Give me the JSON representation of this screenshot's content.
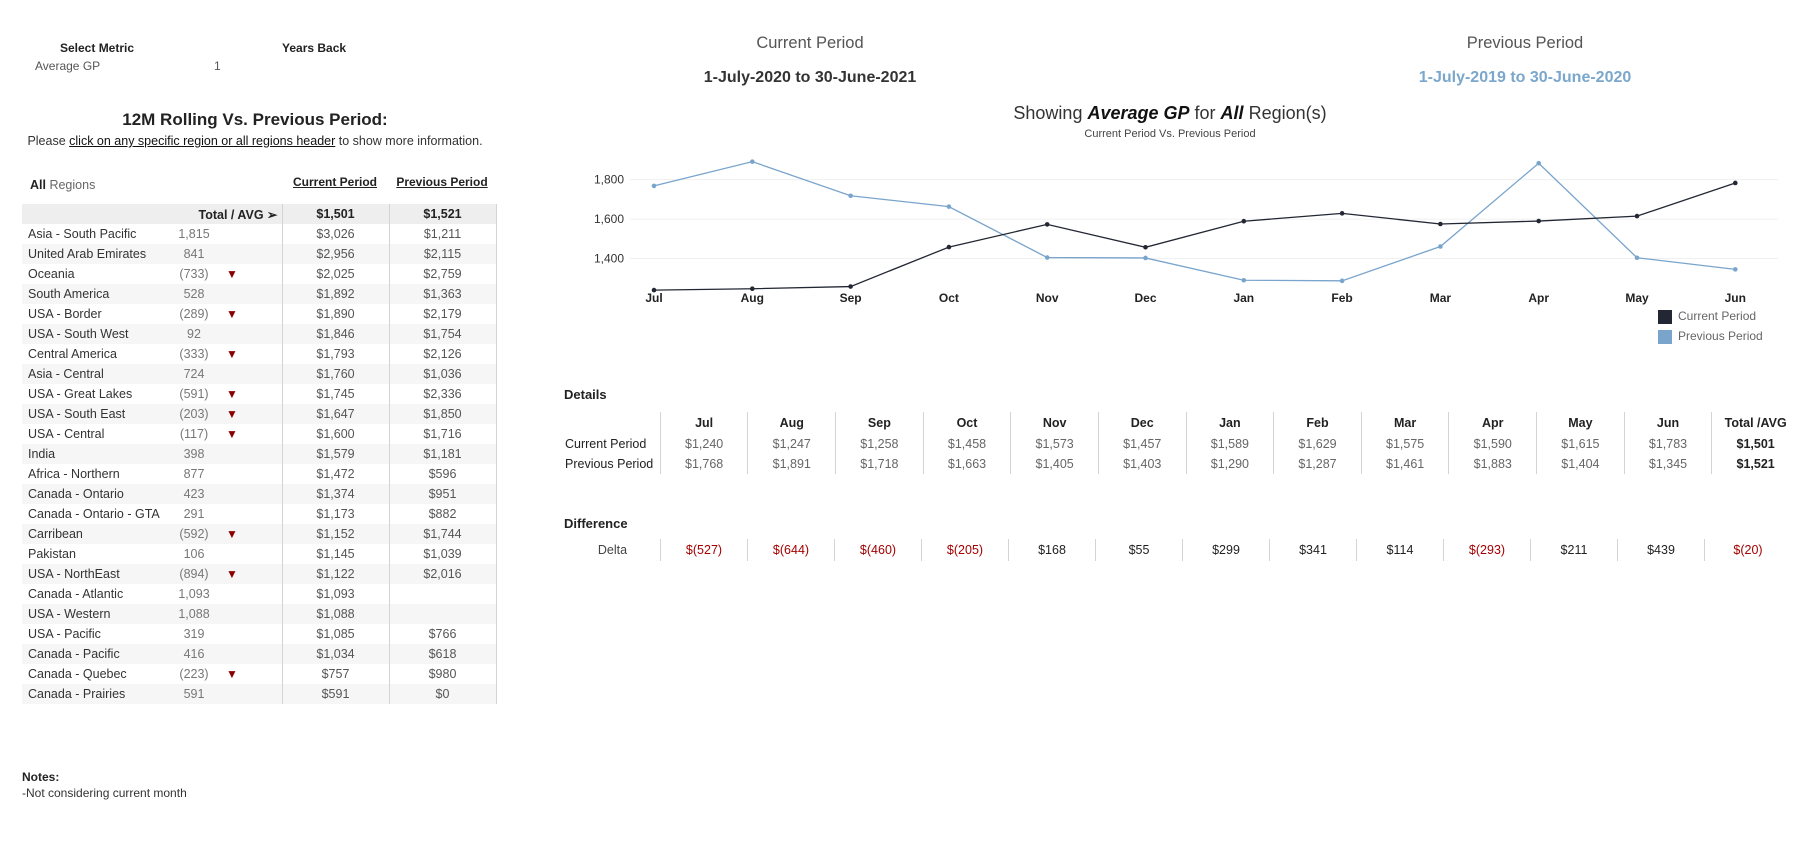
{
  "filters": {
    "metric_label": "Select Metric",
    "metric_value": "Average GP",
    "years_label": "Years Back",
    "years_value": "1"
  },
  "left_panel": {
    "title": "12M Rolling Vs. Previous Period:",
    "instruction_prefix": "Please ",
    "instruction_link": "click on any specific region or all regions header",
    "instruction_suffix": " to show more information.",
    "regions_header_bold": "All",
    "regions_header_rest": " Regions",
    "col_current": "Current Period",
    "col_previous": "Previous Period",
    "total_label": "Total / AVG ➢",
    "total_current": "$1,501",
    "total_previous": "$1,521",
    "rows": [
      {
        "name": "Asia - South Pacific",
        "diff": "1,815",
        "down": false,
        "current": "$3,026",
        "previous": "$1,211"
      },
      {
        "name": "United Arab Emirates",
        "diff": "841",
        "down": false,
        "current": "$2,956",
        "previous": "$2,115"
      },
      {
        "name": "Oceania",
        "diff": "(733)",
        "down": true,
        "current": "$2,025",
        "previous": "$2,759"
      },
      {
        "name": "South America",
        "diff": "528",
        "down": false,
        "current": "$1,892",
        "previous": "$1,363"
      },
      {
        "name": "USA - Border",
        "diff": "(289)",
        "down": true,
        "current": "$1,890",
        "previous": "$2,179"
      },
      {
        "name": "USA - South West",
        "diff": "92",
        "down": false,
        "current": "$1,846",
        "previous": "$1,754"
      },
      {
        "name": "Central America",
        "diff": "(333)",
        "down": true,
        "current": "$1,793",
        "previous": "$2,126"
      },
      {
        "name": "Asia - Central",
        "diff": "724",
        "down": false,
        "current": "$1,760",
        "previous": "$1,036"
      },
      {
        "name": "USA - Great Lakes",
        "diff": "(591)",
        "down": true,
        "current": "$1,745",
        "previous": "$2,336"
      },
      {
        "name": "USA - South East",
        "diff": "(203)",
        "down": true,
        "current": "$1,647",
        "previous": "$1,850"
      },
      {
        "name": "USA - Central",
        "diff": "(117)",
        "down": true,
        "current": "$1,600",
        "previous": "$1,716"
      },
      {
        "name": "India",
        "diff": "398",
        "down": false,
        "current": "$1,579",
        "previous": "$1,181"
      },
      {
        "name": "Africa - Northern",
        "diff": "877",
        "down": false,
        "current": "$1,472",
        "previous": "$596"
      },
      {
        "name": "Canada - Ontario",
        "diff": "423",
        "down": false,
        "current": "$1,374",
        "previous": "$951"
      },
      {
        "name": "Canada - Ontario - GTA",
        "diff": "291",
        "down": false,
        "current": "$1,173",
        "previous": "$882"
      },
      {
        "name": "Carribean",
        "diff": "(592)",
        "down": true,
        "current": "$1,152",
        "previous": "$1,744"
      },
      {
        "name": "Pakistan",
        "diff": "106",
        "down": false,
        "current": "$1,145",
        "previous": "$1,039"
      },
      {
        "name": "USA - NorthEast",
        "diff": "(894)",
        "down": true,
        "current": "$1,122",
        "previous": "$2,016"
      },
      {
        "name": "Canada - Atlantic",
        "diff": "1,093",
        "down": false,
        "current": "$1,093",
        "previous": ""
      },
      {
        "name": "USA - Western",
        "diff": "1,088",
        "down": false,
        "current": "$1,088",
        "previous": ""
      },
      {
        "name": "USA - Pacific",
        "diff": "319",
        "down": false,
        "current": "$1,085",
        "previous": "$766"
      },
      {
        "name": "Canada - Pacific",
        "diff": "416",
        "down": false,
        "current": "$1,034",
        "previous": "$618"
      },
      {
        "name": "Canada - Quebec",
        "diff": "(223)",
        "down": true,
        "current": "$757",
        "previous": "$980"
      },
      {
        "name": "Canada - Prairies",
        "diff": "591",
        "down": false,
        "current": "$591",
        "previous": "$0"
      }
    ],
    "down_icon": "triangle-down-icon",
    "down_color": "#8b0000"
  },
  "notes": {
    "title": "Notes:",
    "text": "-Not considering current month"
  },
  "periods": {
    "current_label": "Current Period",
    "current_dates": "1-July-2020  to  30-June-2021",
    "current_color": "#333333",
    "previous_label": "Previous Period",
    "previous_dates": "1-July-2019  to  30-June-2020",
    "previous_color": "#7ba7cc"
  },
  "showing": {
    "prefix": "Showing ",
    "metric": "Average GP",
    "mid": " for ",
    "region": "All",
    "suffix": " Region(s)",
    "subtitle": "Current Period Vs. Previous Period"
  },
  "chart_data": {
    "type": "line",
    "categories": [
      "Jul",
      "Aug",
      "Sep",
      "Oct",
      "Nov",
      "Dec",
      "Jan",
      "Feb",
      "Mar",
      "Apr",
      "May",
      "Jun"
    ],
    "series": [
      {
        "name": "Current Period",
        "color": "#222733",
        "values": [
          1240,
          1247,
          1258,
          1458,
          1573,
          1457,
          1589,
          1629,
          1575,
          1590,
          1615,
          1783
        ]
      },
      {
        "name": "Previous Period",
        "color": "#79a4cc",
        "values": [
          1768,
          1891,
          1718,
          1663,
          1405,
          1403,
          1290,
          1287,
          1461,
          1883,
          1404,
          1345
        ]
      }
    ],
    "y_ticks": [
      "1,400",
      "1,600",
      "1,800"
    ],
    "ylim": [
      1200,
      1950
    ],
    "grid": true,
    "legend": "bottom-right"
  },
  "details": {
    "title": "Details",
    "months": [
      "Jul",
      "Aug",
      "Sep",
      "Oct",
      "Nov",
      "Dec",
      "Jan",
      "Feb",
      "Mar",
      "Apr",
      "May",
      "Jun"
    ],
    "total_header": "Total /AVG",
    "current_label": "Current Period",
    "current_values": [
      "$1,240",
      "$1,247",
      "$1,258",
      "$1,458",
      "$1,573",
      "$1,457",
      "$1,589",
      "$1,629",
      "$1,575",
      "$1,590",
      "$1,615",
      "$1,783"
    ],
    "current_total": "$1,501",
    "previous_label": "Previous Period",
    "previous_values": [
      "$1,768",
      "$1,891",
      "$1,718",
      "$1,663",
      "$1,405",
      "$1,403",
      "$1,290",
      "$1,287",
      "$1,461",
      "$1,883",
      "$1,404",
      "$1,345"
    ],
    "previous_total": "$1,521"
  },
  "difference": {
    "title": "Difference",
    "label": "Delta",
    "values": [
      {
        "text": "$(527)",
        "negative": true
      },
      {
        "text": "$(644)",
        "negative": true
      },
      {
        "text": "$(460)",
        "negative": true
      },
      {
        "text": "$(205)",
        "negative": true
      },
      {
        "text": "$168",
        "negative": false
      },
      {
        "text": "$55",
        "negative": false
      },
      {
        "text": "$299",
        "negative": false
      },
      {
        "text": "$341",
        "negative": false
      },
      {
        "text": "$114",
        "negative": false
      },
      {
        "text": "$(293)",
        "negative": true
      },
      {
        "text": "$211",
        "negative": false
      },
      {
        "text": "$439",
        "negative": false
      },
      {
        "text": "$(20)",
        "negative": true
      }
    ],
    "negative_color": "#a40000"
  }
}
